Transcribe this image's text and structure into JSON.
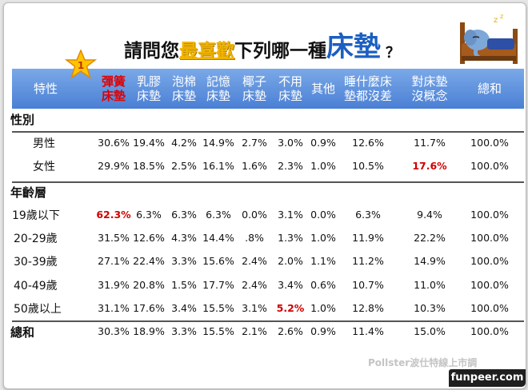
{
  "title": {
    "part1": "請問您",
    "highlight": "最喜歡",
    "part2": "下列哪一種",
    "big": "床墊",
    "qmark": "？"
  },
  "rank_badge": "1",
  "watermark": "Pollster波仕特線上市調",
  "watermark_tail": "om",
  "brand": "funpeer.com",
  "colors": {
    "header_bg": "#5a8fdc",
    "highlight": "#d00000",
    "title_accent": "#f0b400",
    "bed_blue": "#1b5fc0"
  },
  "chart_data": {
    "type": "table",
    "title": "請問您最喜歡下列哪一種床墊？",
    "columns": [
      {
        "key": "attr",
        "lines": [
          "特性"
        ]
      },
      {
        "key": "spring",
        "lines": [
          "彈簧",
          "床墊"
        ]
      },
      {
        "key": "latex",
        "lines": [
          "乳膠",
          "床墊"
        ]
      },
      {
        "key": "foam",
        "lines": [
          "泡棉",
          "床墊"
        ]
      },
      {
        "key": "memory",
        "lines": [
          "記憶",
          "床墊"
        ]
      },
      {
        "key": "coconut",
        "lines": [
          "椰子",
          "床墊"
        ]
      },
      {
        "key": "none",
        "lines": [
          "不用",
          "床墊"
        ]
      },
      {
        "key": "other",
        "lines": [
          "其他"
        ]
      },
      {
        "key": "any",
        "lines": [
          "睡什麼床",
          "墊都沒差"
        ]
      },
      {
        "key": "noidea",
        "lines": [
          "對床墊",
          "沒概念"
        ]
      },
      {
        "key": "total",
        "lines": [
          "總和"
        ]
      }
    ],
    "rows": [
      {
        "label": "性別",
        "group": true
      },
      {
        "label": "男性",
        "values": [
          "30.6%",
          "19.4%",
          "4.2%",
          "14.9%",
          "2.7%",
          "3.0%",
          "0.9%",
          "12.6%",
          "11.7%",
          "100.0%"
        ],
        "highlight": []
      },
      {
        "label": "女性",
        "values": [
          "29.9%",
          "18.5%",
          "2.5%",
          "16.1%",
          "1.6%",
          "2.3%",
          "1.0%",
          "10.5%",
          "17.6%",
          "100.0%"
        ],
        "highlight": [
          8
        ]
      },
      {
        "label": "年齡層",
        "group": true
      },
      {
        "label": "19歲以下",
        "values": [
          "62.3%",
          "6.3%",
          "6.3%",
          "6.3%",
          "0.0%",
          "3.1%",
          "0.0%",
          "6.3%",
          "9.4%",
          "100.0%"
        ],
        "highlight": [
          0
        ]
      },
      {
        "label": "20-29歲",
        "values": [
          "31.5%",
          "12.6%",
          "4.3%",
          "14.4%",
          ".8%",
          "1.3%",
          "1.0%",
          "11.9%",
          "22.2%",
          "100.0%"
        ],
        "highlight": []
      },
      {
        "label": "30-39歲",
        "values": [
          "27.1%",
          "22.4%",
          "3.3%",
          "15.6%",
          "2.4%",
          "2.0%",
          "1.1%",
          "11.2%",
          "14.9%",
          "100.0%"
        ],
        "highlight": []
      },
      {
        "label": "40-49歲",
        "values": [
          "31.9%",
          "20.8%",
          "1.5%",
          "17.7%",
          "2.4%",
          "3.4%",
          "0.6%",
          "10.7%",
          "11.0%",
          "100.0%"
        ],
        "highlight": []
      },
      {
        "label": "50歲以上",
        "values": [
          "31.1%",
          "17.6%",
          "3.4%",
          "15.5%",
          "3.1%",
          "5.2%",
          "1.0%",
          "12.8%",
          "10.3%",
          "100.0%"
        ],
        "highlight": [
          5
        ]
      },
      {
        "label": "總和",
        "group": true,
        "values": [
          "30.3%",
          "18.9%",
          "3.3%",
          "15.5%",
          "2.1%",
          "2.6%",
          "0.9%",
          "11.4%",
          "15.0%",
          "100.0%"
        ],
        "highlight": []
      }
    ]
  }
}
